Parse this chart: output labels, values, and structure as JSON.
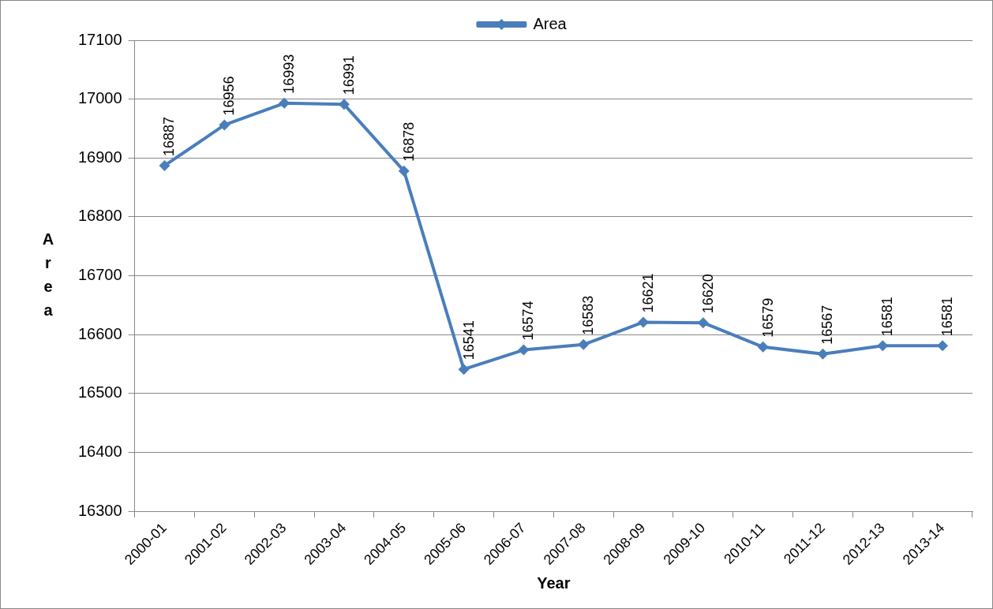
{
  "chart_data": {
    "type": "line",
    "xlabel": "Year",
    "ylabel": "Area",
    "categories": [
      "2000-01",
      "2001-02",
      "2002-03",
      "2003-04",
      "2004-05",
      "2005-06",
      "2006-07",
      "2007-08",
      "2008-09",
      "2009-10",
      "2010-11",
      "2011-12",
      "2012-13",
      "2013-14"
    ],
    "series": [
      {
        "name": "Area",
        "color": "#4a7ebb",
        "values": [
          16887,
          16956,
          16993,
          16991,
          16878,
          16541,
          16574,
          16583,
          16621,
          16620,
          16579,
          16567,
          16581,
          16581
        ]
      }
    ],
    "ylim": [
      16300,
      17100
    ],
    "yticks": [
      16300,
      16400,
      16500,
      16600,
      16700,
      16800,
      16900,
      17000,
      17100
    ],
    "grid": "y",
    "legend": "top",
    "marker": "diamond",
    "line_style": "solid",
    "data_labels": true
  }
}
